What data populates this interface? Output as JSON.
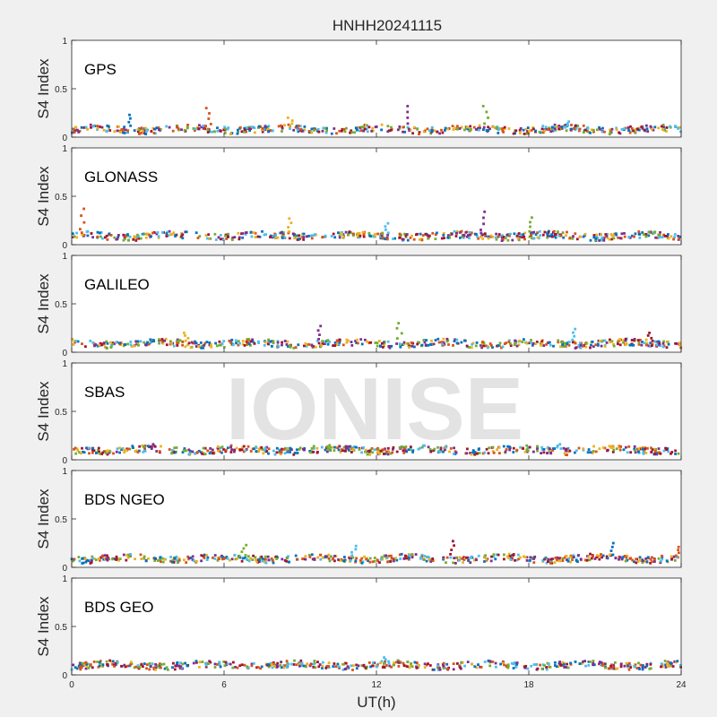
{
  "figure_title": "HNHH20241115",
  "watermark": "IONISE",
  "colors": {
    "background": "#f0f0f0",
    "panel": "#ffffff",
    "axis": "#262626",
    "watermark": "#d9d9d9",
    "series_palette": [
      "#0072BD",
      "#D95319",
      "#EDB120",
      "#7E2F8E",
      "#77AC30",
      "#4DBEEE",
      "#A2142F"
    ]
  },
  "chart_data": [
    {
      "type": "scatter",
      "title": "GPS",
      "ylabel": "S4 Index",
      "xlabel": "",
      "xlim": [
        0,
        24
      ],
      "ylim": [
        0,
        1
      ],
      "yticks": [
        "0",
        "0.5",
        "1"
      ],
      "xticks": [],
      "grid": false,
      "baseline_s4": 0.08,
      "spikes": [
        {
          "x": 2.3,
          "y": 0.23
        },
        {
          "x": 5.4,
          "y": 0.3
        },
        {
          "x": 8.6,
          "y": 0.2
        },
        {
          "x": 13.3,
          "y": 0.32
        },
        {
          "x": 16.3,
          "y": 0.32
        },
        {
          "x": 19.5,
          "y": 0.16
        }
      ]
    },
    {
      "type": "scatter",
      "title": "GLONASS",
      "ylabel": "S4 Index",
      "xlabel": "",
      "xlim": [
        0,
        24
      ],
      "ylim": [
        0,
        1
      ],
      "yticks": [
        "0",
        "0.5",
        "1"
      ],
      "xticks": [],
      "grid": false,
      "baseline_s4": 0.09,
      "spikes": [
        {
          "x": 0.4,
          "y": 0.37
        },
        {
          "x": 8.6,
          "y": 0.27
        },
        {
          "x": 16.2,
          "y": 0.34
        },
        {
          "x": 18.1,
          "y": 0.28
        },
        {
          "x": 12.4,
          "y": 0.22
        }
      ]
    },
    {
      "type": "scatter",
      "title": "GALILEO",
      "ylabel": "S4 Index",
      "xlabel": "",
      "xlim": [
        0,
        24
      ],
      "ylim": [
        0,
        1
      ],
      "yticks": [
        "0",
        "0.5",
        "1"
      ],
      "xticks": [],
      "grid": false,
      "baseline_s4": 0.09,
      "spikes": [
        {
          "x": 4.5,
          "y": 0.2
        },
        {
          "x": 9.7,
          "y": 0.27
        },
        {
          "x": 12.9,
          "y": 0.3
        },
        {
          "x": 19.8,
          "y": 0.24
        },
        {
          "x": 22.8,
          "y": 0.2
        }
      ]
    },
    {
      "type": "scatter",
      "title": "SBAS",
      "ylabel": "S4 Index",
      "xlabel": "",
      "xlim": [
        0,
        24
      ],
      "ylim": [
        0,
        1
      ],
      "yticks": [
        "0",
        "0.5",
        "1"
      ],
      "xticks": [],
      "grid": false,
      "baseline_s4": 0.1,
      "spikes": [
        {
          "x": 3.2,
          "y": 0.16
        },
        {
          "x": 10.1,
          "y": 0.15
        },
        {
          "x": 19.2,
          "y": 0.16
        }
      ]
    },
    {
      "type": "scatter",
      "title": "BDS NGEO",
      "ylabel": "S4 Index",
      "xlabel": "",
      "xlim": [
        0,
        24
      ],
      "ylim": [
        0,
        1
      ],
      "yticks": [
        "0",
        "0.5",
        "1"
      ],
      "xticks": [],
      "grid": false,
      "baseline_s4": 0.09,
      "spikes": [
        {
          "x": 6.8,
          "y": 0.23
        },
        {
          "x": 11.1,
          "y": 0.22
        },
        {
          "x": 15.0,
          "y": 0.27
        },
        {
          "x": 21.3,
          "y": 0.25
        },
        {
          "x": 23.9,
          "y": 0.21
        }
      ]
    },
    {
      "type": "scatter",
      "title": "BDS GEO",
      "ylabel": "S4 Index",
      "xlabel": "UT(h)",
      "xlim": [
        0,
        24
      ],
      "ylim": [
        0,
        1
      ],
      "yticks": [
        "0",
        "0.5",
        "1"
      ],
      "xticks": [
        "0",
        "6",
        "12",
        "18",
        "24"
      ],
      "grid": false,
      "baseline_s4": 0.1,
      "spikes": [
        {
          "x": 12.4,
          "y": 0.18
        }
      ]
    }
  ]
}
